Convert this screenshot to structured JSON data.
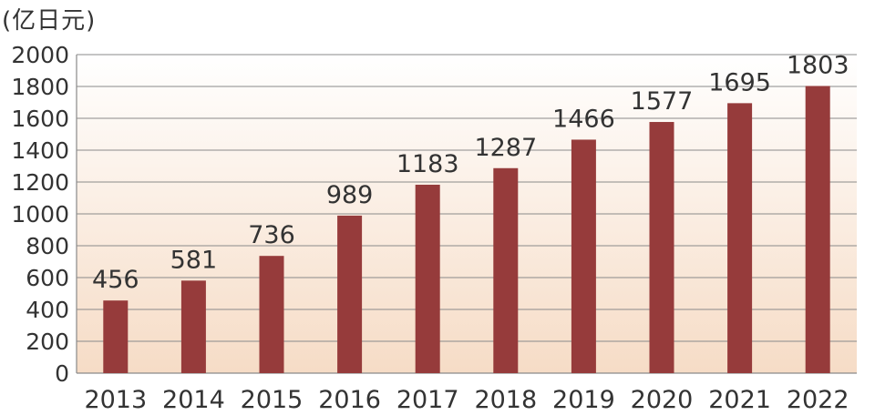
{
  "chart_data": {
    "type": "bar",
    "unit_label": "(亿日元)",
    "categories": [
      "2013",
      "2014",
      "2015",
      "2016",
      "2017",
      "2018",
      "2019",
      "2020",
      "2021",
      "2022"
    ],
    "series": [
      {
        "values": [
          456,
          581,
          736,
          989,
          1183,
          1287,
          1466,
          1577,
          1695,
          1803
        ]
      }
    ],
    "data_labels": [
      "456",
      "581",
      "736",
      "989",
      "1183",
      "1287",
      "1466",
      "1577",
      "1695",
      "1803"
    ],
    "ylim": [
      0,
      2000
    ],
    "yticks": [
      "0",
      "200",
      "400",
      "600",
      "800",
      "1000",
      "1200",
      "1400",
      "1600",
      "1800",
      "2000"
    ],
    "grid": true,
    "colors": {
      "bar": "#963b3b",
      "gradient_top": "#ffffff",
      "gradient_bottom": "#f6dcc6",
      "grid": "#8a8a8a",
      "axis": "#8a8a8a"
    }
  }
}
